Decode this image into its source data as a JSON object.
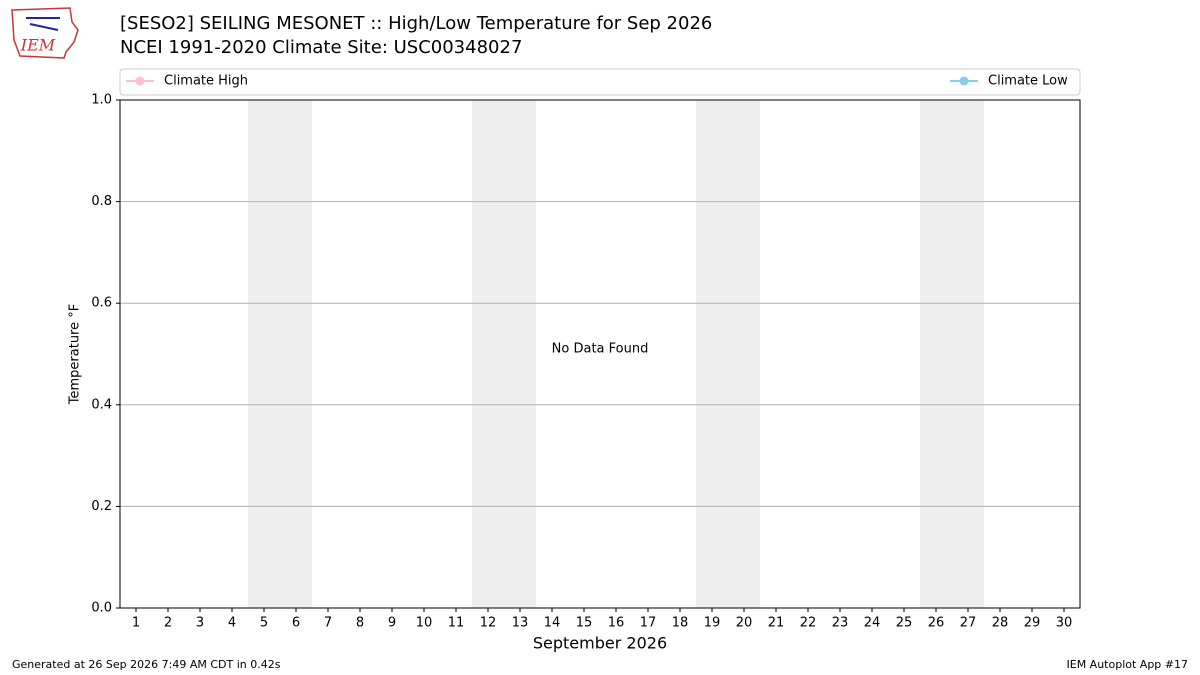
{
  "chart_data": {
    "type": "line",
    "title": "[SESO2] SEILING MESONET :: High/Low Temperature for Sep 2026",
    "subtitle": "NCEI 1991-2020 Climate Site: USC00348027",
    "y_label": "Temperature °F",
    "x_label": "September 2026",
    "annotation": "No Data Found",
    "categories": [
      "1",
      "2",
      "3",
      "4",
      "5",
      "6",
      "7",
      "8",
      "9",
      "10",
      "11",
      "12",
      "13",
      "14",
      "15",
      "16",
      "17",
      "18",
      "19",
      "20",
      "21",
      "22",
      "23",
      "24",
      "25",
      "26",
      "27",
      "28",
      "29",
      "30"
    ],
    "shaded_days": [
      5,
      6,
      12,
      13,
      19,
      20,
      26,
      27
    ],
    "shade_color": "#eeeeee",
    "series": [
      {
        "name": "Climate High",
        "color": "#ffc0cb",
        "values": [
          null,
          null,
          null,
          null,
          null,
          null,
          null,
          null,
          null,
          null,
          null,
          null,
          null,
          null,
          null,
          null,
          null,
          null,
          null,
          null,
          null,
          null,
          null,
          null,
          null,
          null,
          null,
          null,
          null,
          null
        ]
      },
      {
        "name": "Climate Low",
        "color": "#87ceeb",
        "values": [
          null,
          null,
          null,
          null,
          null,
          null,
          null,
          null,
          null,
          null,
          null,
          null,
          null,
          null,
          null,
          null,
          null,
          null,
          null,
          null,
          null,
          null,
          null,
          null,
          null,
          null,
          null,
          null,
          null,
          null
        ]
      }
    ],
    "ylim": [
      0,
      1
    ],
    "yticks": [
      {
        "value": 0,
        "label": "0.0"
      },
      0.2,
      0.4,
      0.6,
      0.8,
      {
        "value": 1,
        "label": "1.0"
      }
    ],
    "grid": true,
    "logo_text": "IEM",
    "footer_left": "Generated at 26 Sep 2026 7:49 AM CDT in 0.42s",
    "footer_right": "IEM Autoplot App #17"
  }
}
